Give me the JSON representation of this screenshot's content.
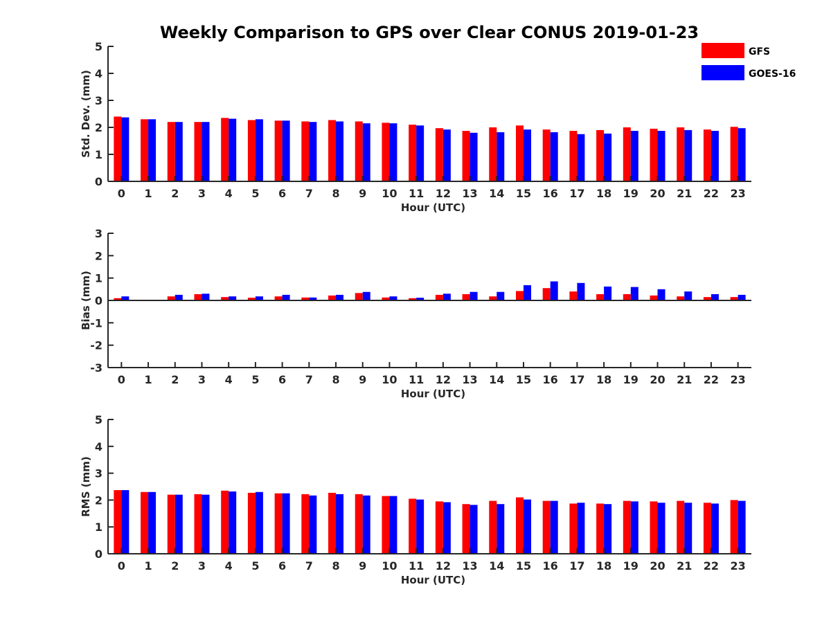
{
  "title": "Weekly Comparison to GPS over Clear CONUS 2019-01-23",
  "colors": {
    "GFS": "#ff0000",
    "GOES-16": "#0000ff"
  },
  "legend": [
    "GFS",
    "GOES-16"
  ],
  "chart_data": [
    {
      "type": "bar",
      "xlabel": "Hour (UTC)",
      "ylabel": "Std. Dev. (mm)",
      "ylim": [
        0,
        5
      ],
      "yticks": [
        "0",
        "1",
        "2",
        "3",
        "4",
        "5"
      ],
      "categories": [
        "0",
        "1",
        "2",
        "3",
        "4",
        "5",
        "6",
        "7",
        "8",
        "9",
        "10",
        "11",
        "12",
        "13",
        "14",
        "15",
        "16",
        "17",
        "18",
        "19",
        "20",
        "21",
        "22",
        "23"
      ],
      "series": [
        {
          "name": "GFS",
          "values": [
            2.4,
            2.3,
            2.2,
            2.2,
            2.35,
            2.27,
            2.25,
            2.22,
            2.27,
            2.22,
            2.17,
            2.1,
            1.97,
            1.87,
            2.0,
            2.07,
            1.92,
            1.87,
            1.9,
            2.0,
            1.95,
            2.0,
            1.92,
            2.02
          ]
        },
        {
          "name": "GOES-16",
          "values": [
            2.37,
            2.3,
            2.2,
            2.2,
            2.32,
            2.3,
            2.25,
            2.2,
            2.22,
            2.15,
            2.15,
            2.07,
            1.92,
            1.8,
            1.82,
            1.92,
            1.82,
            1.75,
            1.77,
            1.87,
            1.87,
            1.9,
            1.87,
            1.97
          ]
        }
      ]
    },
    {
      "type": "bar",
      "xlabel": "Hour (UTC)",
      "ylabel": "Bias (mm)",
      "ylim": [
        -3,
        3
      ],
      "yticks": [
        "-3",
        "-2",
        "-1",
        "0",
        "1",
        "2",
        "3"
      ],
      "categories": [
        "0",
        "1",
        "2",
        "3",
        "4",
        "5",
        "6",
        "7",
        "8",
        "9",
        "10",
        "11",
        "12",
        "13",
        "14",
        "15",
        "16",
        "17",
        "18",
        "19",
        "20",
        "21",
        "22",
        "23"
      ],
      "series": [
        {
          "name": "GFS",
          "values": [
            0.1,
            0.01,
            0.18,
            0.28,
            0.15,
            0.12,
            0.18,
            0.13,
            0.22,
            0.33,
            0.13,
            0.1,
            0.25,
            0.28,
            0.18,
            0.42,
            0.55,
            0.4,
            0.28,
            0.28,
            0.22,
            0.18,
            0.15,
            0.15
          ]
        },
        {
          "name": "GOES-16",
          "values": [
            0.18,
            0.02,
            0.25,
            0.3,
            0.18,
            0.18,
            0.25,
            0.13,
            0.25,
            0.38,
            0.18,
            0.12,
            0.3,
            0.38,
            0.38,
            0.68,
            0.85,
            0.78,
            0.62,
            0.6,
            0.5,
            0.4,
            0.28,
            0.25
          ]
        }
      ]
    },
    {
      "type": "bar",
      "xlabel": "Hour (UTC)",
      "ylabel": "RMS (mm)",
      "ylim": [
        0,
        5
      ],
      "yticks": [
        "0",
        "1",
        "2",
        "3",
        "4",
        "5"
      ],
      "categories": [
        "0",
        "1",
        "2",
        "3",
        "4",
        "5",
        "6",
        "7",
        "8",
        "9",
        "10",
        "11",
        "12",
        "13",
        "14",
        "15",
        "16",
        "17",
        "18",
        "19",
        "20",
        "21",
        "22",
        "23"
      ],
      "series": [
        {
          "name": "GFS",
          "values": [
            2.37,
            2.3,
            2.2,
            2.22,
            2.35,
            2.27,
            2.25,
            2.22,
            2.27,
            2.22,
            2.15,
            2.05,
            1.95,
            1.85,
            1.97,
            2.1,
            1.97,
            1.87,
            1.87,
            1.97,
            1.95,
            1.97,
            1.9,
            2.0
          ]
        },
        {
          "name": "GOES-16",
          "values": [
            2.37,
            2.3,
            2.2,
            2.2,
            2.32,
            2.3,
            2.25,
            2.17,
            2.22,
            2.17,
            2.15,
            2.02,
            1.92,
            1.82,
            1.85,
            2.02,
            1.97,
            1.9,
            1.85,
            1.95,
            1.9,
            1.9,
            1.87,
            1.97
          ]
        }
      ]
    }
  ]
}
